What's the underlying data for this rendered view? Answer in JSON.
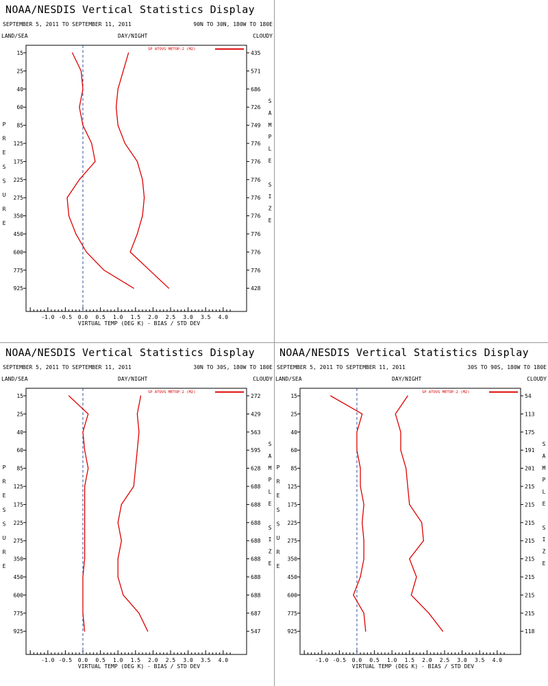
{
  "page": {
    "display_title": "NOAA/NESDIS Vertical Statistics Display",
    "date_range": "SEPTEMBER 5, 2011 TO SEPTEMBER 11, 2011",
    "land_sea": "LAND/SEA",
    "day_night": "DAY/NIGHT",
    "cloudy": "CLOUDY",
    "left_axis_label": [
      "P",
      "R",
      "E",
      "S",
      "S",
      "U",
      "R",
      "E"
    ],
    "right_axis_label": [
      "S",
      "A",
      "M",
      "P",
      "L",
      "E",
      "",
      "S",
      "I",
      "Z",
      "E"
    ],
    "x_axis_label": "VIRTUAL TEMP (DEG K) - BIAS / STD DEV",
    "colors": {
      "series": "#dd0000",
      "zero_line": "#3050a0",
      "divider": "#999999"
    }
  },
  "chart_data": [
    {
      "type": "line",
      "region": "90N TO 30N, 180W TO 180E",
      "legend": "SP ATOVS METOP-2 (M2)",
      "pressure_levels": [
        "15",
        "25",
        "40",
        "60",
        "85",
        "125",
        "175",
        "225",
        "275",
        "350",
        "450",
        "600",
        "775",
        "925"
      ],
      "sample_size": [
        "435",
        "571",
        "686",
        "726",
        "749",
        "776",
        "776",
        "776",
        "776",
        "776",
        "776",
        "776",
        "776",
        "428"
      ],
      "x_ticks": [
        "-1.0",
        "-0.5",
        "0.0",
        "0.5",
        "1.0",
        "1.5",
        "2.0",
        "2.5",
        "3.0",
        "3.5",
        "4.0"
      ],
      "xlim": [
        -1.5,
        4.25
      ],
      "series": [
        {
          "name": "bias",
          "values": [
            -0.3,
            -0.05,
            0.0,
            -0.1,
            0.0,
            0.25,
            0.35,
            -0.1,
            -0.45,
            -0.4,
            -0.2,
            0.1,
            0.6,
            1.45
          ]
        },
        {
          "name": "std_dev",
          "values": [
            1.3,
            1.15,
            1.0,
            0.95,
            1.0,
            1.2,
            1.55,
            1.7,
            1.75,
            1.7,
            1.55,
            1.35,
            1.9,
            2.45
          ]
        }
      ]
    },
    {
      "type": "line",
      "region": "30N TO 30S, 180W TO 180E",
      "legend": "SP ATOVS METOP-2 (M2)",
      "pressure_levels": [
        "15",
        "25",
        "40",
        "60",
        "85",
        "125",
        "175",
        "225",
        "275",
        "350",
        "450",
        "600",
        "775",
        "925"
      ],
      "sample_size": [
        "272",
        "429",
        "563",
        "595",
        "628",
        "688",
        "688",
        "688",
        "688",
        "688",
        "688",
        "688",
        "687",
        "547"
      ],
      "x_ticks": [
        "-1.0",
        "-0.5",
        "0.0",
        "0.5",
        "1.0",
        "1.5",
        "2.0",
        "2.5",
        "3.0",
        "3.5",
        "4.0"
      ],
      "xlim": [
        -1.5,
        4.25
      ],
      "series": [
        {
          "name": "bias",
          "values": [
            -0.4,
            0.15,
            0.0,
            0.05,
            0.15,
            0.05,
            0.05,
            0.05,
            0.05,
            0.05,
            0.0,
            0.0,
            0.0,
            0.05
          ]
        },
        {
          "name": "std_dev",
          "values": [
            1.65,
            1.55,
            1.6,
            1.55,
            1.5,
            1.45,
            1.1,
            1.0,
            1.1,
            1.0,
            1.0,
            1.15,
            1.6,
            1.85
          ]
        }
      ]
    },
    {
      "type": "line",
      "region": "30S TO 90S, 180W TO 180E",
      "legend": "SP ATOVS METOP-2 (M2)",
      "pressure_levels": [
        "15",
        "25",
        "40",
        "60",
        "85",
        "125",
        "175",
        "225",
        "275",
        "350",
        "450",
        "600",
        "775",
        "925"
      ],
      "sample_size": [
        "54",
        "113",
        "175",
        "191",
        "201",
        "215",
        "215",
        "215",
        "215",
        "215",
        "215",
        "215",
        "215",
        "118"
      ],
      "x_ticks": [
        "-1.0",
        "-0.5",
        "0.0",
        "0.5",
        "1.0",
        "1.5",
        "2.0",
        "2.5",
        "3.0",
        "3.5",
        "4.0"
      ],
      "xlim": [
        -1.5,
        4.25
      ],
      "series": [
        {
          "name": "bias",
          "values": [
            -0.75,
            0.15,
            0.0,
            0.0,
            0.1,
            0.1,
            0.2,
            0.15,
            0.2,
            0.2,
            0.1,
            -0.1,
            0.2,
            0.25
          ]
        },
        {
          "name": "std_dev",
          "values": [
            1.45,
            1.1,
            1.25,
            1.25,
            1.4,
            1.45,
            1.5,
            1.85,
            1.9,
            1.5,
            1.7,
            1.55,
            2.05,
            2.45
          ]
        }
      ]
    }
  ]
}
